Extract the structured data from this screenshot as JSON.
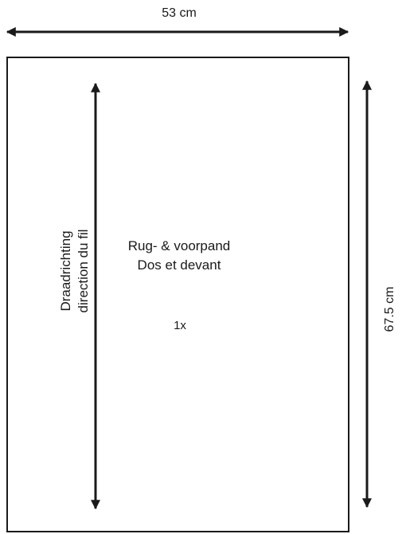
{
  "dimensions": {
    "width_label": "53 cm",
    "height_label": "67.5 cm"
  },
  "grainline": {
    "line1": "Draadrichting",
    "line2": "direction du fil"
  },
  "piece": {
    "name_nl": "Rug- & voorpand",
    "name_fr": "Dos et devant",
    "quantity": "1x"
  },
  "colors": {
    "ink": "#1a1a1a",
    "background": "#ffffff"
  }
}
